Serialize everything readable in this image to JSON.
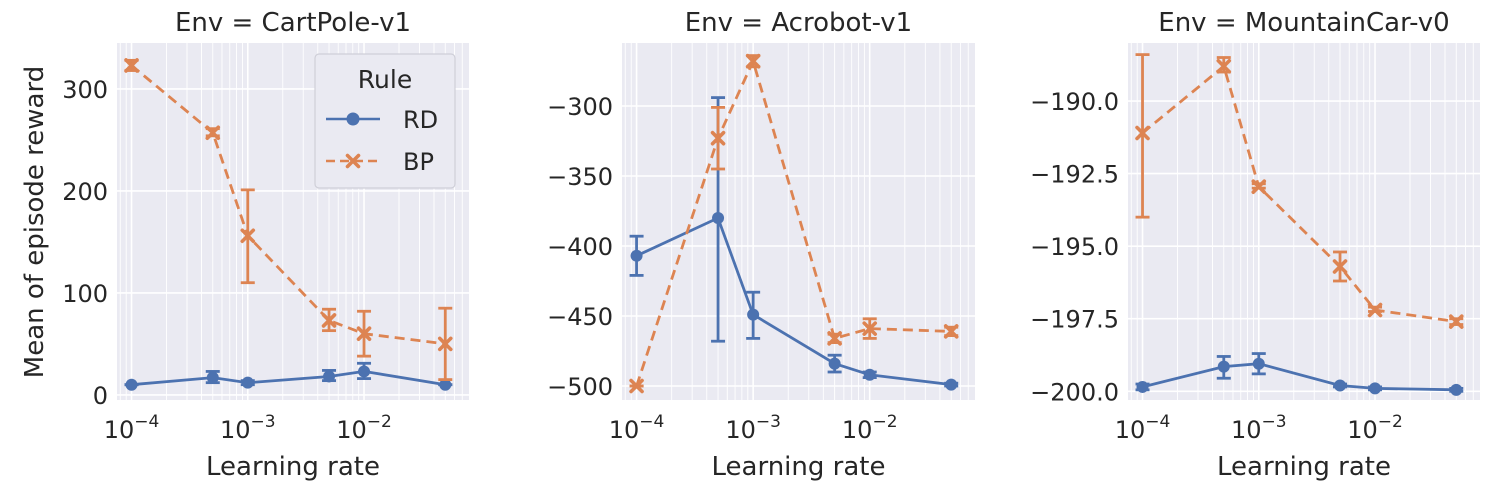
{
  "colors": {
    "RD": "#4c72b0",
    "BP": "#dd8452"
  },
  "ylabel": "Mean of episode reward",
  "legend": {
    "title": "Rule",
    "entries": [
      "RD",
      "BP"
    ]
  },
  "chart_data": [
    {
      "type": "line",
      "title": "Env = CartPole-v1",
      "xlabel": "Learning rate",
      "xscale": "log",
      "xlim": [
        7.5e-05,
        0.08
      ],
      "ylim": [
        -5,
        345
      ],
      "yticks": [
        0,
        100,
        200,
        300
      ],
      "ytick_labels": [
        "0",
        "100",
        "200",
        "300"
      ],
      "xtick_labels": [
        "10^-4",
        "10^-3",
        "10^-2"
      ],
      "legend": "upper right",
      "grid": true,
      "x": [
        0.0001,
        0.0005,
        0.001,
        0.005,
        0.01,
        0.05
      ],
      "series": [
        {
          "name": "RD",
          "marker": "circle",
          "linestyle": "solid",
          "values": [
            10,
            17,
            12,
            18,
            23,
            10
          ],
          "err_low": [
            10,
            12,
            10,
            14,
            16,
            10
          ],
          "err_high": [
            10,
            23,
            14,
            24,
            31,
            10
          ]
        },
        {
          "name": "BP",
          "marker": "x",
          "linestyle": "dashed",
          "values": [
            323,
            257,
            156,
            73,
            60,
            50
          ],
          "err_low": [
            318,
            254,
            110,
            63,
            38,
            15
          ],
          "err_high": [
            328,
            261,
            201,
            84,
            82,
            85
          ]
        }
      ]
    },
    {
      "type": "line",
      "title": "Env = Acrobot-v1",
      "xlabel": "Learning rate",
      "xscale": "log",
      "xlim": [
        7.5e-05,
        0.08
      ],
      "ylim": [
        -510,
        -255
      ],
      "yticks": [
        -500,
        -450,
        -400,
        -350,
        -300
      ],
      "ytick_labels": [
        "−500",
        "−450",
        "−400",
        "−350",
        "−300"
      ],
      "xtick_labels": [
        "10^-4",
        "10^-3",
        "10^-2"
      ],
      "grid": true,
      "x": [
        0.0001,
        0.0005,
        0.001,
        0.005,
        0.01,
        0.05
      ],
      "series": [
        {
          "name": "RD",
          "marker": "circle",
          "linestyle": "solid",
          "values": [
            -407,
            -380,
            -449,
            -484,
            -492,
            -499
          ],
          "err_low": [
            -421,
            -468,
            -466,
            -490,
            -494,
            -500
          ],
          "err_high": [
            -393,
            -294,
            -433,
            -478,
            -490,
            -498
          ]
        },
        {
          "name": "BP",
          "marker": "x",
          "linestyle": "dashed",
          "values": [
            -500,
            -323,
            -268,
            -466,
            -459,
            -461
          ],
          "err_low": [
            -500,
            -345,
            -272,
            -469,
            -466,
            -464
          ],
          "err_high": [
            -500,
            -301,
            -264,
            -463,
            -452,
            -458
          ]
        }
      ]
    },
    {
      "type": "line",
      "title": "Env = MountainCar-v0",
      "xlabel": "Learning rate",
      "xscale": "log",
      "xlim": [
        7.5e-05,
        0.08
      ],
      "ylim": [
        -200.3,
        -188.0
      ],
      "yticks": [
        -200.0,
        -197.5,
        -195.0,
        -192.5,
        -190.0
      ],
      "ytick_labels": [
        "−200.0",
        "−197.5",
        "−195.0",
        "−192.5",
        "−190.0"
      ],
      "xtick_labels": [
        "10^-4",
        "10^-3",
        "10^-2"
      ],
      "grid": true,
      "x": [
        0.0001,
        0.0005,
        0.001,
        0.005,
        0.01,
        0.05
      ],
      "series": [
        {
          "name": "RD",
          "marker": "circle",
          "linestyle": "solid",
          "values": [
            -199.85,
            -199.15,
            -199.05,
            -199.8,
            -199.9,
            -199.95
          ],
          "err_low": [
            -199.95,
            -199.55,
            -199.4,
            -199.85,
            -199.95,
            -200.0
          ],
          "err_high": [
            -199.75,
            -198.8,
            -198.7,
            -199.75,
            -199.85,
            -199.9
          ]
        },
        {
          "name": "BP",
          "marker": "x",
          "linestyle": "dashed",
          "values": [
            -191.1,
            -188.8,
            -192.95,
            -195.7,
            -197.2,
            -197.6
          ],
          "err_low": [
            -194.0,
            -189.0,
            -193.0,
            -196.2,
            -197.25,
            -197.7
          ],
          "err_high": [
            -188.4,
            -188.5,
            -192.85,
            -195.2,
            -197.1,
            -197.5
          ]
        }
      ]
    }
  ]
}
